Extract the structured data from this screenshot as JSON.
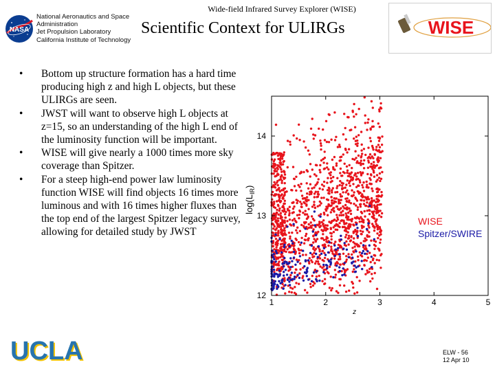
{
  "header": {
    "top_line": "Wide-field Infrared Survey Explorer (WISE)",
    "org_lines": [
      "National Aeronautics and Space",
      "Administration",
      "Jet Propulsion Laboratory",
      "California Institute of Technology"
    ],
    "title": "Scientific Context for ULIRGs",
    "nasa_logo_text": "NASA",
    "wise_logo_text": "WISE"
  },
  "bullets": [
    "Bottom up structure formation has a hard time producing high z and high L objects, but these ULIRGs are seen.",
    "JWST will want to observe high L objects at z=15, so an understanding of the high L end of the luminosity function will be important.",
    "WISE will give nearly a 1000 times more sky coverage than Spitzer.",
    "For a steep high-end power law luminosity function WISE will find objects 16 times more luminous and with 16 times higher fluxes than the top end of the largest Spitzer legacy survey, allowing for detailed study by JWST"
  ],
  "bullet_glyph": "•",
  "chart_data": {
    "type": "scatter",
    "title": "",
    "xlabel": "z",
    "ylabel": "log(L_IR)",
    "ylabel_main": "log(L",
    "ylabel_sub": "IR",
    "ylabel_close": ")",
    "xlim": [
      1,
      5
    ],
    "ylim": [
      12,
      14.5
    ],
    "x_ticks": [
      "1",
      "2",
      "3",
      "4",
      "5"
    ],
    "x_tick_values": [
      1,
      2,
      3,
      4,
      5
    ],
    "y_ticks": [
      "12",
      "13",
      "14"
    ],
    "y_tick_values": [
      12,
      13,
      14
    ],
    "grid": false,
    "legend_position": "right",
    "series": [
      {
        "name": "WISE",
        "color": "#e8141c",
        "count_hint": "dense cloud, z 1.0-3.0, log L 12.2-14.5"
      },
      {
        "name": "Spitzer/SWIRE",
        "color": "#1a1aa6",
        "count_hint": "concentrated z 1.0-1.3, log L 12.0-13.0, sparse to z 3.0"
      }
    ]
  },
  "ucla_logo_text": "UCLA",
  "footer": {
    "line1": "ELW - 56",
    "line2": "12 Apr 10"
  },
  "colors": {
    "wise_red": "#e8141c",
    "spitzer_blue": "#1a1aa6",
    "ucla_blue": "#2774ae",
    "ucla_gold": "#f2c200",
    "nasa_blue": "#0b3d91"
  }
}
